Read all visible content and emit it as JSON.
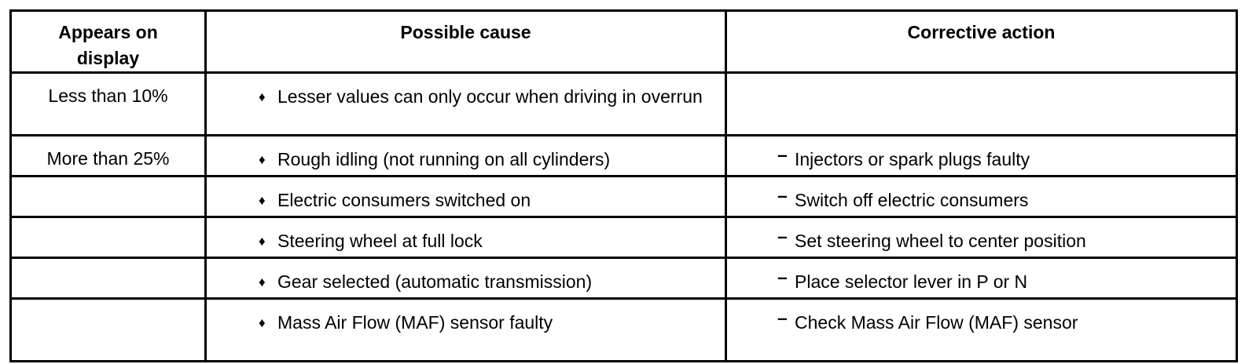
{
  "table": {
    "columns": [
      {
        "label": "Appears on display"
      },
      {
        "label": "Possible cause"
      },
      {
        "label": "Corrective action"
      }
    ],
    "markers": {
      "cause": "♦",
      "action": "–"
    },
    "rows": [
      {
        "display": "Less than 10%",
        "cause": "Lesser values can only occur when driving in overrun",
        "action": ""
      },
      {
        "display": "More than 25%",
        "cause": "Rough idling (not running on all cylinders)",
        "action": "Injectors or spark plugs faulty"
      },
      {
        "display": "",
        "cause": "Electric consumers switched on",
        "action": "Switch off electric consumers"
      },
      {
        "display": "",
        "cause": "Steering wheel at full lock",
        "action": "Set steering wheel to center position"
      },
      {
        "display": "",
        "cause": "Gear selected (automatic transmission)",
        "action": "Place selector lever in P or N"
      },
      {
        "display": "",
        "cause": "Mass Air Flow (MAF) sensor faulty",
        "action": "Check Mass Air Flow (MAF) sensor"
      }
    ]
  }
}
